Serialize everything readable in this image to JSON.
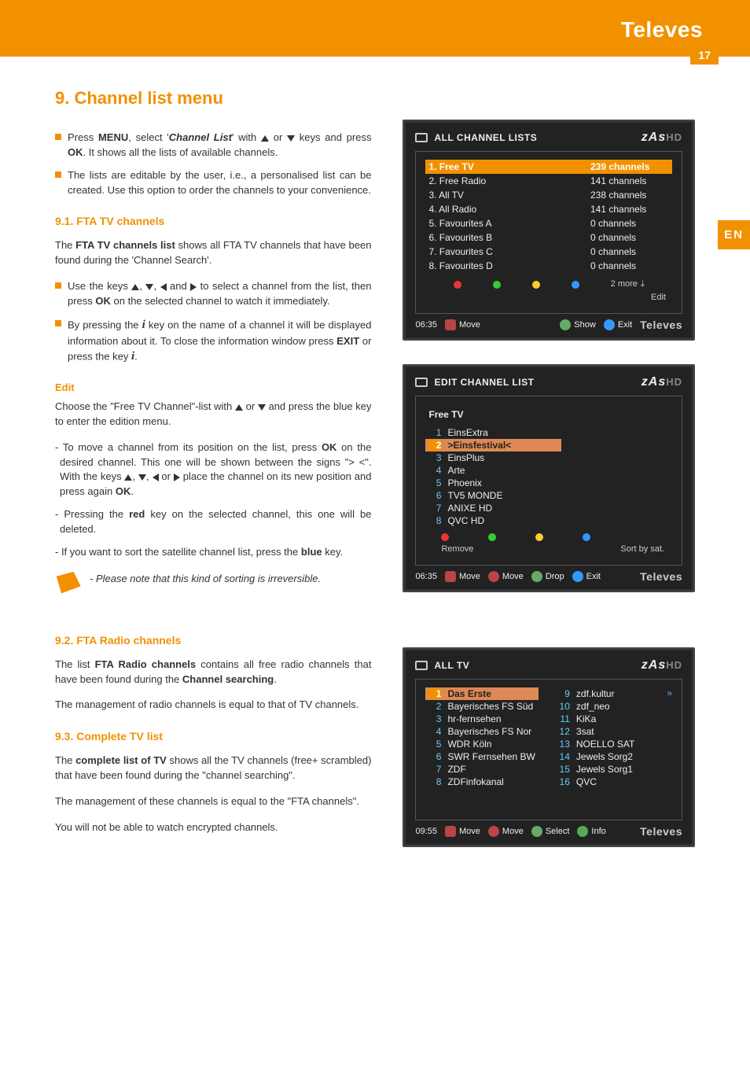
{
  "meta": {
    "brand": "Televes",
    "page_number": "17",
    "lang_tab": "EN"
  },
  "left": {
    "title": "9. Channel list menu",
    "intro_b1_pre": "Press ",
    "intro_b1_menu": "MENU",
    "intro_b1_mid1": ", select '",
    "intro_b1_ch": "Channel List",
    "intro_b1_mid2": "' with ",
    "intro_b1_mid3": " or ",
    "intro_b1_mid4": " keys and press ",
    "intro_b1_ok": "OK",
    "intro_b1_end": ". It shows all the lists of available channels.",
    "intro_b2": "The lists are editable by the user, i.e., a personalised list can be created. Use this option to order the channels to your convenience.",
    "h91": "9.1. FTA TV channels",
    "p91_pre": "The ",
    "p91_b": "FTA TV channels list",
    "p91_post": " shows all FTA TV channels that have been found during the 'Channel Search'.",
    "b91a_pre": "Use the keys ",
    "b91a_mid1": ", ",
    "b91a_mid2": ", ",
    "b91a_mid3": " and ",
    "b91a_mid4": " to select a channel from the list, then press ",
    "b91a_ok": "OK",
    "b91a_end": " on the selected channel to watch it immediately.",
    "b91b_pre": "By pressing the ",
    "b91b_mid1": " key on the name of a channel it will be displayed information about it. To close the information window press ",
    "b91b_exit": "EXIT",
    "b91b_mid2": " or press the key ",
    "b91b_end": ".",
    "edit_h": "Edit",
    "edit_p_pre": "Choose the \"Free TV Channel\"-list with ",
    "edit_p_mid": " or ",
    "edit_p_end": " and press the blue key to enter the edition menu.",
    "d1_pre": "- To move a channel from its position on the list, press ",
    "d1_ok": "OK",
    "d1_mid1": " on the desired channel. This one will be shown between the signs \"> <\". With the keys ",
    "d1_mid2": ", ",
    "d1_mid3": ", ",
    "d1_mid4": " or ",
    "d1_mid5": " place the channel on its new position and press again ",
    "d1_ok2": "OK",
    "d1_end": ".",
    "d2_pre": "- Pressing the ",
    "d2_red": "red",
    "d2_end": " key on the selected channel, this one will be deleted.",
    "d3_pre": "- If you want to sort the satellite channel list, press the ",
    "d3_blue": "blue",
    "d3_end": " key.",
    "note": "- Please note that this kind of sorting is irreversible.",
    "h92": "9.2. FTA Radio channels",
    "p92_pre": "The list ",
    "p92_b": "FTA Radio channels",
    "p92_mid": " contains all free radio channels that have been found during the ",
    "p92_b2": "Channel searching",
    "p92_end": ".",
    "p92b": "The management of radio channels is equal to that of TV channels.",
    "h93": "9.3. Complete TV list",
    "p93_pre": "The ",
    "p93_b": "complete list of TV",
    "p93_end": " shows all the TV channels (free+ scrambled) that have been found during the \"channel searching\".",
    "p93b": "The management of these channels is equal to the \"FTA channels\".",
    "p93c": "You will not be able to watch encrypted channels."
  },
  "panel1": {
    "title": "ALL CHANNEL LISTS",
    "logo_z": "zAs",
    "logo_hd": "HD",
    "rows": [
      {
        "name": "1. Free TV",
        "count": "239 channels",
        "sel": true
      },
      {
        "name": "2. Free Radio",
        "count": "141 channels"
      },
      {
        "name": "3. All TV",
        "count": "238 channels"
      },
      {
        "name": "4. All Radio",
        "count": "141 channels"
      },
      {
        "name": "5. Favourites A",
        "count": "0 channels"
      },
      {
        "name": "6. Favourites B",
        "count": "0 channels"
      },
      {
        "name": "7. Favourites C",
        "count": "0 channels"
      },
      {
        "name": "8. Favourites D",
        "count": "0 channels"
      }
    ],
    "more": "2 more",
    "edit": "Edit",
    "time": "06:35",
    "k_move": "Move",
    "k_show": "Show",
    "k_exit": "Exit",
    "brand": "Televes"
  },
  "panel2": {
    "title": "EDIT CHANNEL LIST",
    "subtitle": "Free TV",
    "rows": [
      {
        "n": "1",
        "name": "EinsExtra"
      },
      {
        "n": "2",
        "name": ">Einsfestival<",
        "sel": true
      },
      {
        "n": "3",
        "name": "EinsPlus"
      },
      {
        "n": "4",
        "name": "Arte"
      },
      {
        "n": "5",
        "name": "Phoenix"
      },
      {
        "n": "6",
        "name": "TV5 MONDE"
      },
      {
        "n": "7",
        "name": "ANIXE HD"
      },
      {
        "n": "8",
        "name": "QVC HD"
      }
    ],
    "remove": "Remove",
    "sort": "Sort by sat.",
    "time": "06:35",
    "k_move": "Move",
    "k_move2": "Move",
    "k_drop": "Drop",
    "k_exit": "Exit",
    "brand": "Televes"
  },
  "panel3": {
    "title": "ALL TV",
    "arrow": "»",
    "colA": [
      {
        "n": "1",
        "name": "Das Erste",
        "sel": true
      },
      {
        "n": "2",
        "name": "Bayerisches FS Süd"
      },
      {
        "n": "3",
        "name": "hr-fernsehen"
      },
      {
        "n": "4",
        "name": "Bayerisches FS Nor"
      },
      {
        "n": "5",
        "name": "WDR Köln"
      },
      {
        "n": "6",
        "name": "SWR Fernsehen BW"
      },
      {
        "n": "7",
        "name": "ZDF"
      },
      {
        "n": "8",
        "name": "ZDFinfokanal"
      }
    ],
    "colB": [
      {
        "n": "9",
        "name": "zdf.kultur"
      },
      {
        "n": "10",
        "name": "zdf_neo"
      },
      {
        "n": "11",
        "name": "KiKa"
      },
      {
        "n": "12",
        "name": "3sat"
      },
      {
        "n": "13",
        "name": "NOELLO SAT"
      },
      {
        "n": "14",
        "name": "Jewels Sorg2"
      },
      {
        "n": "15",
        "name": "Jewels Sorg1"
      },
      {
        "n": "16",
        "name": "QVC"
      }
    ],
    "time": "09:55",
    "k_move": "Move",
    "k_move2": "Move",
    "k_select": "Select",
    "k_info": "Info",
    "brand": "Televes"
  }
}
